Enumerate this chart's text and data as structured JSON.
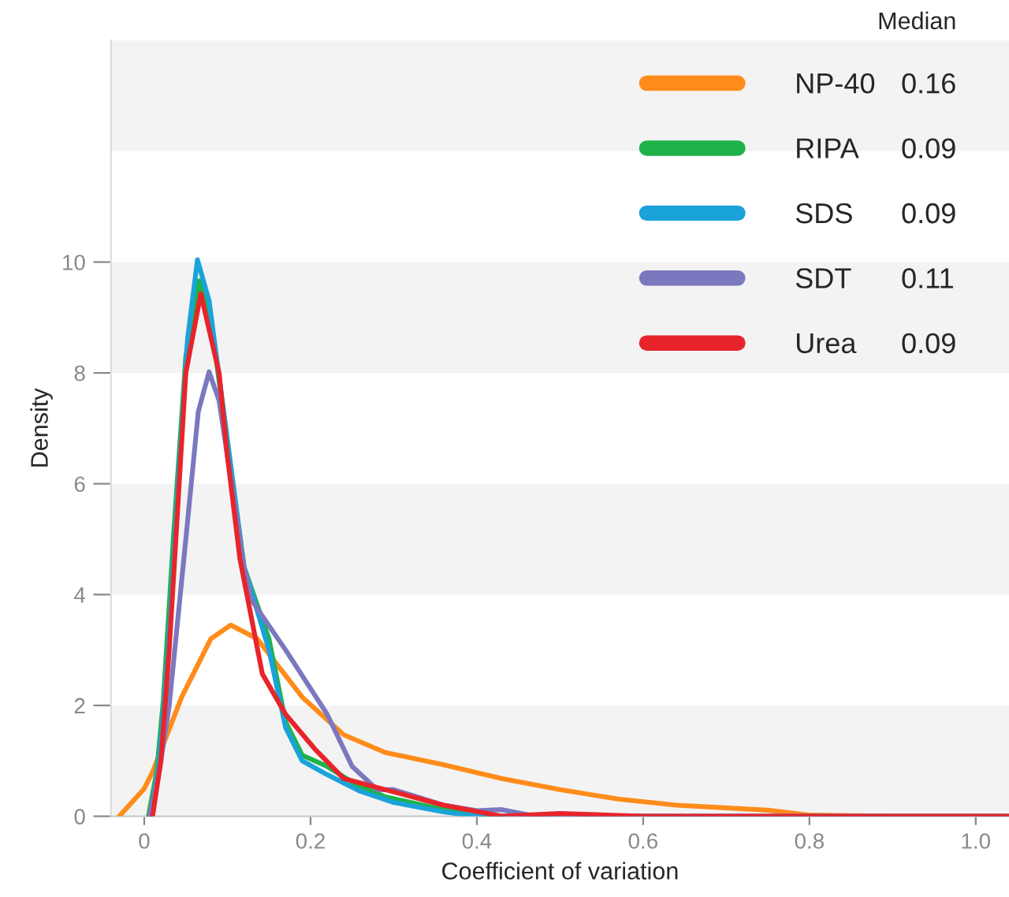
{
  "chart_data": {
    "type": "line",
    "xlabel": "Coefficient of variation",
    "ylabel": "Density",
    "legend_title": "Median",
    "xlim": [
      -0.04,
      1.04
    ],
    "ylim": [
      0,
      14
    ],
    "xticks": [
      {
        "value": 0,
        "label": "0"
      },
      0.2,
      0.4,
      0.6,
      0.8,
      {
        "value": 1.0,
        "label": "1.0"
      }
    ],
    "yticks": [
      0,
      2,
      4,
      6,
      8,
      10
    ],
    "bands": [
      {
        "axis": "y",
        "from": 0,
        "to": 2,
        "color": "#f3f3f3"
      },
      {
        "axis": "y",
        "from": 4,
        "to": 6,
        "color": "#f3f3f3"
      },
      {
        "axis": "y",
        "from": 8,
        "to": 10,
        "color": "#f3f3f3"
      },
      {
        "axis": "y",
        "from": 12,
        "to": 14,
        "color": "#f3f3f3"
      }
    ],
    "legend": "top right",
    "marker": "none",
    "line_style": "solid",
    "annotations": [
      "0.16",
      "0.09",
      "0.09",
      "0.11",
      "0.09"
    ],
    "series": [
      {
        "name": "NP-40",
        "color": "#ff8c1a",
        "x": [
          -0.03,
          0.0,
          0.01,
          0.045,
          0.08,
          0.104,
          0.136,
          0.19,
          0.24,
          0.29,
          0.36,
          0.43,
          0.5,
          0.57,
          0.64,
          0.75,
          0.8,
          0.9,
          1.04
        ],
        "values": [
          0,
          0.5,
          0.8,
          2.15,
          3.2,
          3.45,
          3.2,
          2.15,
          1.47,
          1.15,
          0.93,
          0.68,
          0.48,
          0.31,
          0.2,
          0.11,
          0.02,
          0,
          0
        ]
      },
      {
        "name": "RIPA",
        "color": "#1db34a",
        "x": [
          0.005,
          0.015,
          0.023,
          0.035,
          0.05,
          0.066,
          0.08,
          0.1,
          0.12,
          0.15,
          0.17,
          0.19,
          0.22,
          0.255,
          0.29,
          0.36,
          0.43
        ],
        "values": [
          0,
          0.8,
          2.1,
          5.0,
          8.3,
          9.66,
          9.0,
          6.7,
          4.5,
          3.2,
          1.7,
          1.1,
          0.9,
          0.57,
          0.35,
          0.12,
          0
        ]
      },
      {
        "name": "SDS",
        "color": "#1aa3d9",
        "x": [
          0.008,
          0.018,
          0.028,
          0.04,
          0.052,
          0.064,
          0.078,
          0.1,
          0.12,
          0.15,
          0.17,
          0.19,
          0.22,
          0.26,
          0.3,
          0.36,
          0.4,
          0.6,
          1.04
        ],
        "values": [
          0,
          1.0,
          2.8,
          5.8,
          8.6,
          10.04,
          9.3,
          6.8,
          4.5,
          3.0,
          1.6,
          1.0,
          0.75,
          0.45,
          0.25,
          0.08,
          0,
          0,
          0
        ]
      },
      {
        "name": "SDT",
        "color": "#7b78c0",
        "x": [
          0.006,
          0.018,
          0.03,
          0.05,
          0.065,
          0.078,
          0.09,
          0.1,
          0.12,
          0.129,
          0.17,
          0.22,
          0.25,
          0.28,
          0.3,
          0.36,
          0.4,
          0.43,
          0.47,
          0.6,
          1.04
        ],
        "values": [
          0,
          0.8,
          2.0,
          5.0,
          7.3,
          8.02,
          7.5,
          6.5,
          4.5,
          3.9,
          3.0,
          1.84,
          0.9,
          0.48,
          0.48,
          0.2,
          0.1,
          0.12,
          0,
          0,
          0
        ]
      },
      {
        "name": "Urea",
        "color": "#e8242b",
        "x": [
          0.01,
          0.02,
          0.03,
          0.04,
          0.05,
          0.068,
          0.09,
          0.1,
          0.115,
          0.142,
          0.17,
          0.206,
          0.24,
          0.29,
          0.36,
          0.43,
          0.5,
          0.6,
          1.04
        ],
        "values": [
          0,
          1.0,
          3.0,
          5.5,
          8.0,
          9.43,
          8.0,
          6.5,
          4.65,
          2.57,
          1.84,
          1.2,
          0.68,
          0.48,
          0.2,
          0,
          0.05,
          0,
          0
        ]
      }
    ]
  }
}
